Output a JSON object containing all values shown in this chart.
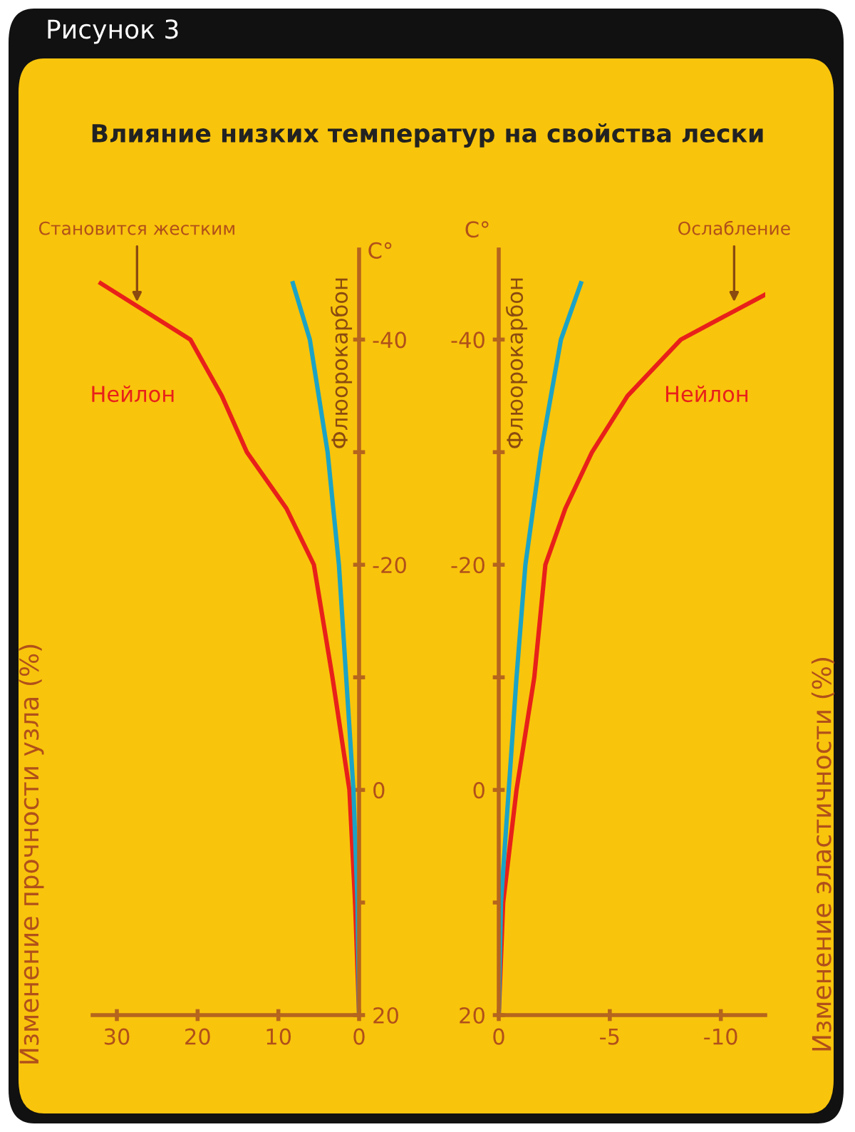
{
  "chart_data": [
    {
      "type": "line",
      "title": "Влияние низких температур на свойства лески",
      "ylabel": "C°",
      "xlim": [
        33,
        0
      ],
      "xticks": [
        30,
        20,
        10,
        0
      ],
      "ylim": [
        20,
        -48
      ],
      "yticks": [
        20,
        {
          "value": 10,
          "label": null
        },
        0,
        {
          "value": -10,
          "label": null
        },
        -20,
        {
          "value": -30,
          "label": null
        },
        -40
      ],
      "grid": false,
      "legend": false,
      "marker": "none",
      "line_style": "solid",
      "series": [
        {
          "name": "Нейлон",
          "color": "#e8201a",
          "x": [
            0,
            0.5,
            1.2,
            3.3,
            5.6,
            9,
            13.9,
            17,
            20.9,
            32
          ],
          "values": [
            20,
            10,
            0,
            -10,
            -20,
            -25,
            -30,
            -35,
            -40,
            -45
          ]
        },
        {
          "name": "Флюорокарбон",
          "color": "#1ba3c6",
          "x": [
            0,
            0.2,
            0.7,
            1.6,
            2.5,
            3.9,
            6.1,
            8.2
          ],
          "values": [
            20,
            10,
            0,
            -10,
            -20,
            -30,
            -40,
            -45
          ]
        }
      ],
      "annotations": [
        "Рисунок 3",
        "Изменение прочности узла (%)",
        {
          "text": "Становится жестким",
          "x": 27.5,
          "y": -43
        }
      ]
    },
    {
      "type": "line",
      "ylabel": "C°",
      "xlim": [
        0,
        -12
      ],
      "xticks": [
        0,
        -5,
        -10
      ],
      "ylim": [
        20,
        -48
      ],
      "yticks": [
        20,
        {
          "value": 10,
          "label": null
        },
        0,
        {
          "value": -10,
          "label": null
        },
        -20,
        {
          "value": -30,
          "label": null
        },
        -40
      ],
      "grid": false,
      "legend": false,
      "marker": "none",
      "line_style": "solid",
      "series": [
        {
          "name": "Нейлон",
          "color": "#e8201a",
          "x": [
            0,
            -0.2,
            -0.8,
            -1.6,
            -2.1,
            -3.0,
            -4.2,
            -5.8,
            -8.2,
            -12
          ],
          "values": [
            20,
            10,
            0,
            -10,
            -20,
            -25,
            -30,
            -35,
            -40,
            -44
          ]
        },
        {
          "name": "Флюорокарбон",
          "color": "#1ba3c6",
          "x": [
            0,
            -0.1,
            -0.45,
            -0.8,
            -1.2,
            -1.9,
            -2.8,
            -3.7
          ],
          "values": [
            20,
            10,
            0,
            -10,
            -20,
            -30,
            -40,
            -45
          ]
        }
      ],
      "annotations": [
        "Изменение эластичности (%)",
        {
          "text": "Ослабление",
          "x": -10.6,
          "y": -43
        }
      ]
    }
  ]
}
